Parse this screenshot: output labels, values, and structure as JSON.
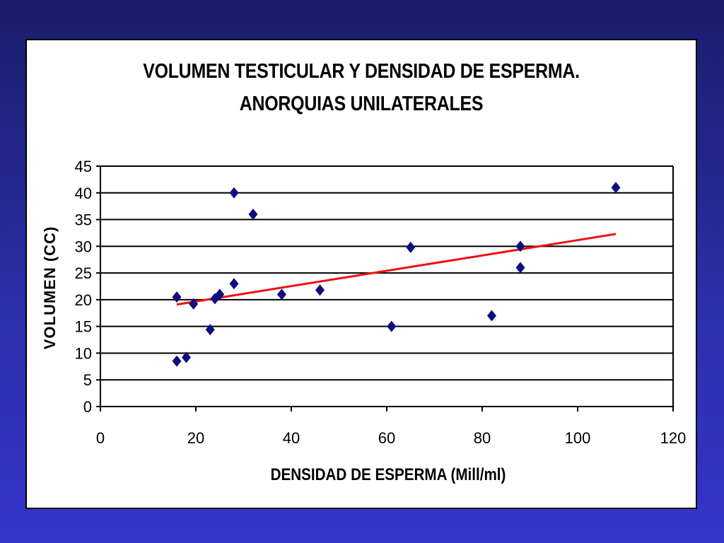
{
  "slide": {
    "title_line1": "VOLUMEN TESTICULAR Y DENSIDAD DE ESPERMA.",
    "title_line2": "ANORQUIAS UNILATERALES"
  },
  "colors": {
    "background": "#2a2fa8",
    "marker": "#0d0d80",
    "trendline": "#ee1111",
    "grid": "#000000"
  },
  "chart_data": {
    "type": "scatter",
    "title": "VOLUMEN TESTICULAR Y DENSIDAD DE ESPERMA. ANORQUIAS UNILATERALES",
    "xlabel": "DENSIDAD DE ESPERMA (Mill/ml)",
    "ylabel": "VOLUMEN (CC)",
    "xlim": [
      0,
      120
    ],
    "ylim": [
      0,
      45
    ],
    "xticks": [
      0,
      20,
      40,
      60,
      80,
      100,
      120
    ],
    "yticks": [
      0,
      5,
      10,
      15,
      20,
      25,
      30,
      35,
      40,
      45
    ],
    "grid": "horizontal",
    "legend": "none",
    "marker": "diamond",
    "points": [
      {
        "x": 16,
        "y": 20.5
      },
      {
        "x": 16,
        "y": 8.5
      },
      {
        "x": 18,
        "y": 9.2
      },
      {
        "x": 19.5,
        "y": 19.2
      },
      {
        "x": 23,
        "y": 14.4
      },
      {
        "x": 24,
        "y": 20.2
      },
      {
        "x": 25,
        "y": 21
      },
      {
        "x": 28,
        "y": 23
      },
      {
        "x": 28,
        "y": 40
      },
      {
        "x": 32,
        "y": 36
      },
      {
        "x": 38,
        "y": 21
      },
      {
        "x": 46,
        "y": 21.8
      },
      {
        "x": 61,
        "y": 15
      },
      {
        "x": 65,
        "y": 29.8
      },
      {
        "x": 82,
        "y": 17
      },
      {
        "x": 88,
        "y": 30
      },
      {
        "x": 88,
        "y": 26
      },
      {
        "x": 108,
        "y": 41
      }
    ],
    "trendline": {
      "x": [
        16,
        108
      ],
      "y": [
        19.1,
        32.3
      ]
    }
  }
}
